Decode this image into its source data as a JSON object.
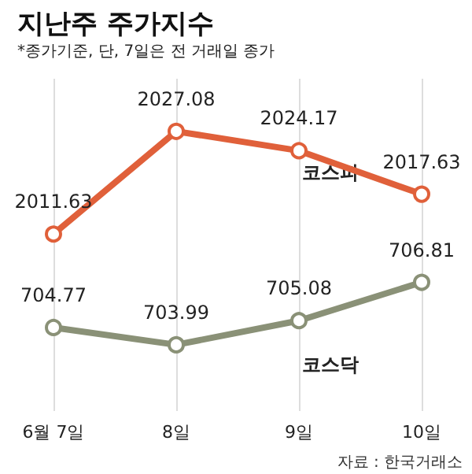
{
  "chart_data": {
    "type": "line",
    "title": "지난주 주가지수",
    "subtitle": "*종가기준, 단, 7일은 전 거래일 종가",
    "categories": [
      "6월 7일",
      "8일",
      "9일",
      "10일"
    ],
    "series": [
      {
        "name": "코스피",
        "color": "#e0603a",
        "values": [
          2011.63,
          2027.08,
          2024.17,
          2017.63
        ]
      },
      {
        "name": "코스닥",
        "color": "#8a9177",
        "values": [
          704.77,
          703.99,
          705.08,
          706.81
        ],
        "axis": "y2"
      }
    ],
    "ylim": [
      1985,
      2035
    ],
    "y2lim": [
      701,
      716
    ],
    "data_labels": true,
    "marker": "circle",
    "grid": "x",
    "annotations": [
      "자료 : 한국거래소"
    ]
  }
}
